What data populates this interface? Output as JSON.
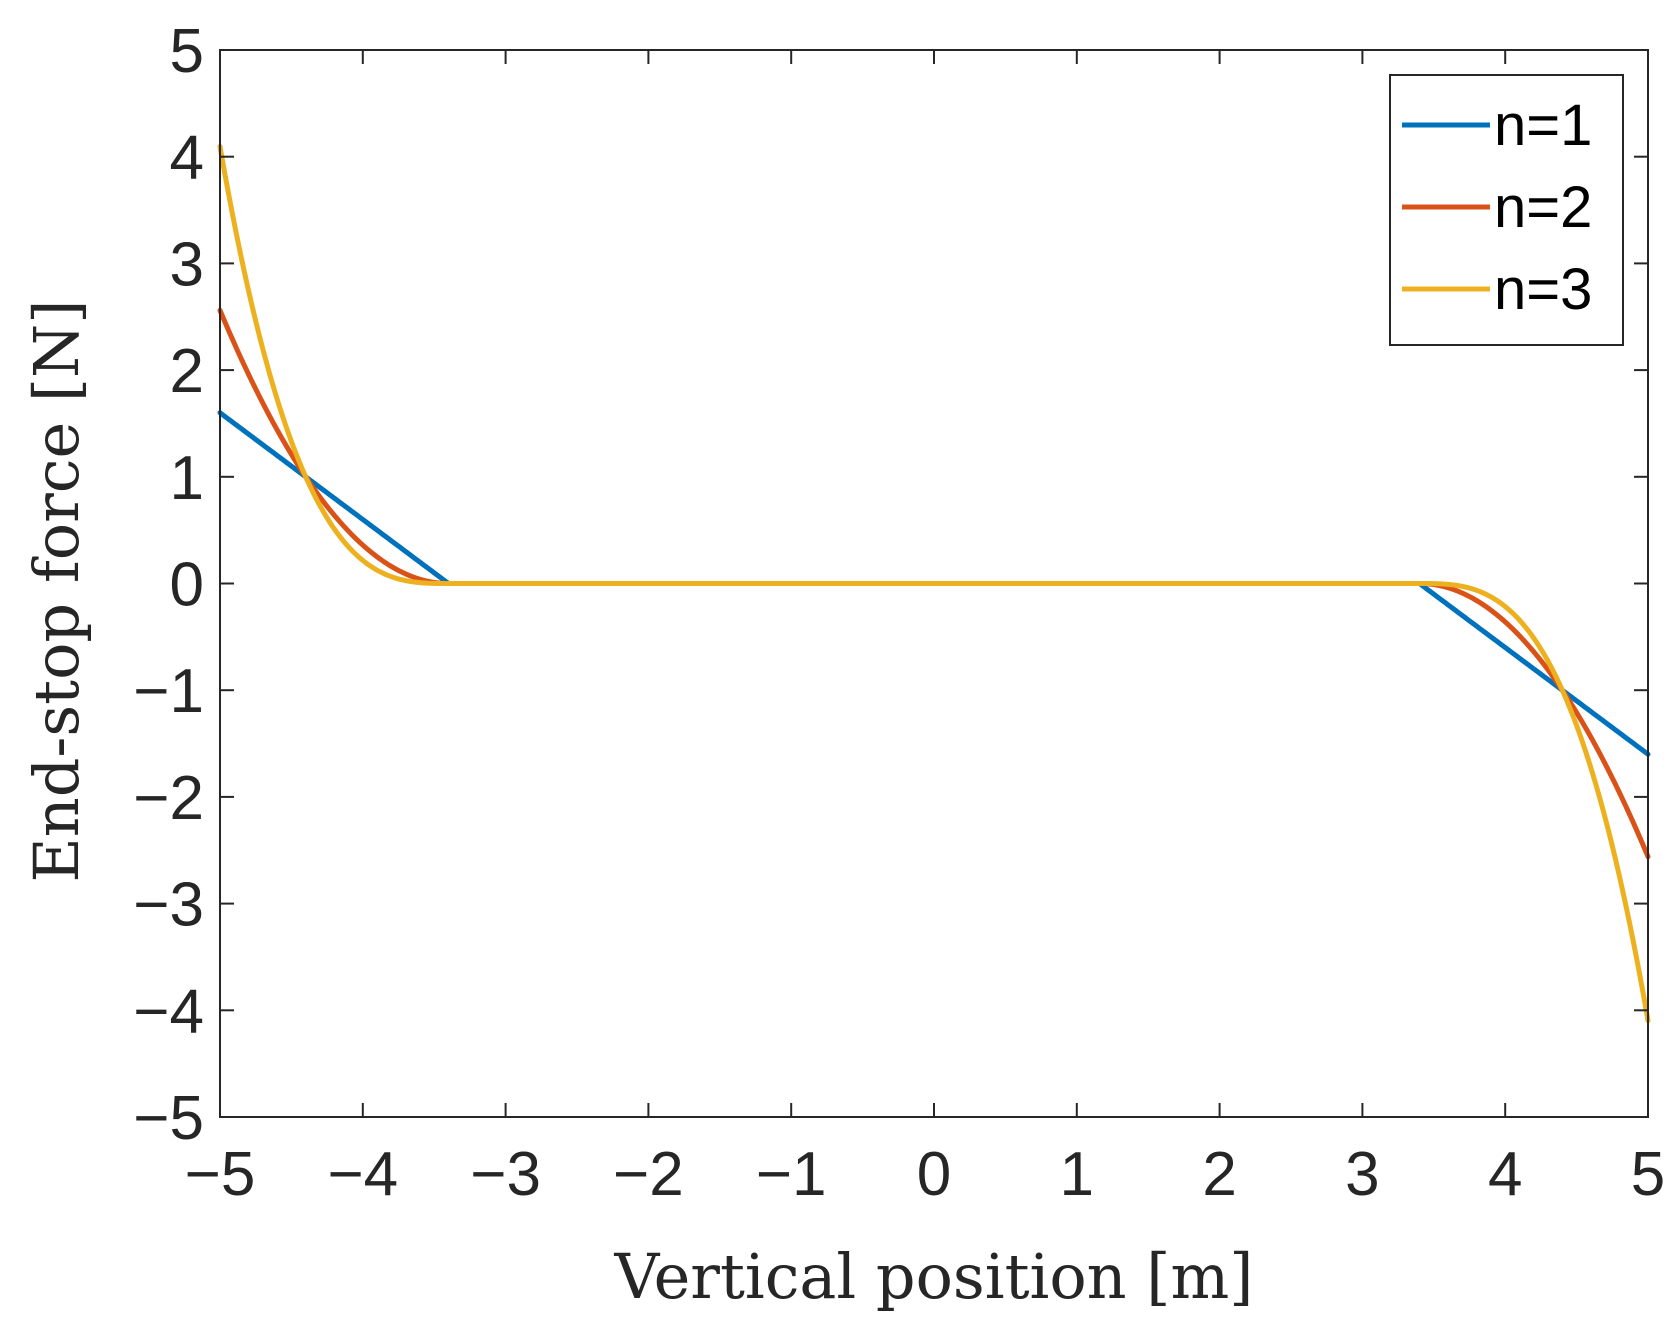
{
  "chart_data": {
    "type": "line",
    "title": "",
    "xlabel": "Vertical position [m]",
    "ylabel": "End-stop force [N]",
    "xlim": [
      -5,
      5
    ],
    "ylim": [
      -5,
      5
    ],
    "grid": false,
    "xticks": [
      -5,
      -4,
      -3,
      -2,
      -1,
      0,
      1,
      2,
      3,
      4,
      5
    ],
    "yticks": [
      -5,
      -4,
      -3,
      -2,
      -1,
      0,
      1,
      2,
      3,
      4,
      5
    ],
    "xtick_labels": [
      "−5",
      "−4",
      "−3",
      "−2",
      "−1",
      "0",
      "1",
      "2",
      "3",
      "4",
      "5"
    ],
    "ytick_labels": [
      "−5",
      "−4",
      "−3",
      "−2",
      "−1",
      "0",
      "1",
      "2",
      "3",
      "4",
      "5"
    ],
    "legend": {
      "location": "top-right"
    },
    "model": {
      "threshold": 3.4,
      "gain": 1.0
    },
    "series": [
      {
        "name": "n=1",
        "exponent": 1,
        "color": "#0072BD",
        "x": [
          -5,
          -4.4,
          -3.4,
          0,
          3.4,
          4.4,
          5
        ],
        "values": [
          1.6,
          1.0,
          0,
          0,
          0,
          -1.0,
          -1.6
        ]
      },
      {
        "name": "n=2",
        "exponent": 2,
        "color": "#D95319",
        "x": [
          -5,
          -4.4,
          -3.4,
          0,
          3.4,
          4.4,
          5
        ],
        "values": [
          2.56,
          1.0,
          0,
          0,
          0,
          -1.0,
          -2.56
        ]
      },
      {
        "name": "n=3",
        "exponent": 3,
        "color": "#EDB120",
        "x": [
          -5,
          -4.4,
          -3.4,
          0,
          3.4,
          4.4,
          5
        ],
        "values": [
          4.1,
          1.0,
          0,
          0,
          0,
          -1.0,
          -4.1
        ]
      }
    ]
  }
}
